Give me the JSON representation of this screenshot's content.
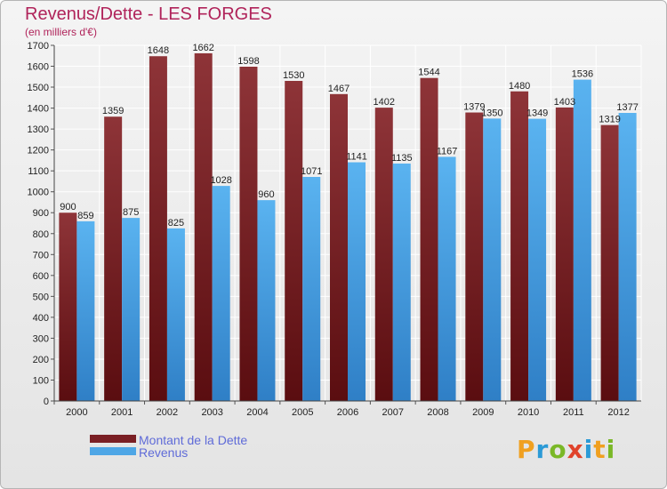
{
  "chart_data": {
    "type": "bar",
    "title": "Revenus/Dette - LES FORGES",
    "subtitle": "(en milliers d'€)",
    "categories": [
      "2000",
      "2001",
      "2002",
      "2003",
      "2004",
      "2005",
      "2006",
      "2007",
      "2008",
      "2009",
      "2010",
      "2011",
      "2012"
    ],
    "series": [
      {
        "name": "Montant de la Dette",
        "color": "#7a1f24",
        "values": [
          900,
          1359,
          1648,
          1662,
          1598,
          1530,
          1467,
          1402,
          1544,
          1379,
          1480,
          1403,
          1319
        ]
      },
      {
        "name": "Revenus",
        "color": "#4ea6e6",
        "values": [
          859,
          875,
          825,
          1028,
          960,
          1071,
          1141,
          1135,
          1167,
          1350,
          1349,
          1536,
          1377
        ]
      }
    ],
    "ylim": [
      0,
      1700
    ],
    "yticks": [
      0,
      100,
      200,
      300,
      400,
      500,
      600,
      700,
      800,
      900,
      1000,
      1100,
      1200,
      1300,
      1400,
      1500,
      1600,
      1700
    ],
    "grid": true,
    "legend_position": "bottom-left"
  },
  "logo": {
    "text": [
      "P",
      "r",
      "o",
      "x",
      "i",
      "t",
      "i"
    ],
    "colors": [
      "#f0a020",
      "#2b9ad6",
      "#7ab827",
      "#e0432b",
      "#2b9ad6",
      "#f0a020",
      "#7ab827"
    ]
  }
}
